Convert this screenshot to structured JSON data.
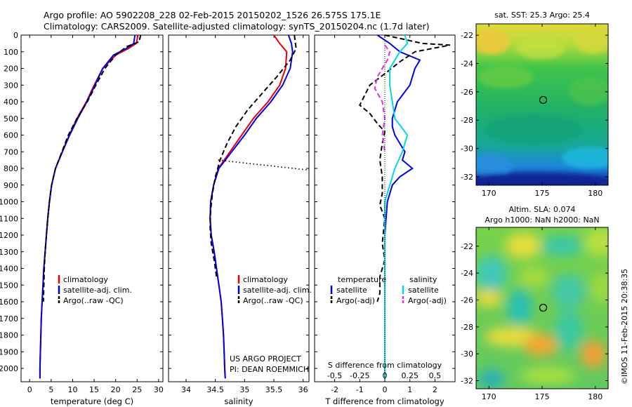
{
  "header": {
    "line1": "Argo profile: AO 5902208_228 02-Feb-2015 20150202_1526 26.575S 175.1E",
    "line2": "Climatology: CARS2009. Satellite-adjusted climatology: synTS_20150204.nc (1.7d later)"
  },
  "colors": {
    "climatology": "#e8000b",
    "satellite": "#0000e6",
    "argo": "#000000",
    "satellite_salinity": "#00d8e8",
    "argo_salinity": "#e030e0"
  },
  "footer_credit": {
    "line1": "US ARGO PROJECT",
    "line2": "PI: DEAN ROEMMICH"
  },
  "timestamp": "©IMOS 11-Feb-2015 20:38:35",
  "chart_data": [
    {
      "type": "line",
      "id": "temperature",
      "xlabel": "temperature (deg C)",
      "ylabel": "",
      "xlim": [
        -2,
        31
      ],
      "ylim": [
        2080,
        0
      ],
      "xticks": [
        0,
        5,
        10,
        15,
        20,
        25,
        30
      ],
      "yticks": [
        0,
        100,
        200,
        300,
        400,
        500,
        600,
        700,
        800,
        900,
        1000,
        1100,
        1200,
        1300,
        1400,
        1500,
        1600,
        1700,
        1800,
        1900,
        2000
      ],
      "legend": [
        "climatology",
        "satellite-adj. clim.",
        "Argo(..raw -QC)"
      ],
      "series": [
        {
          "name": "climatology",
          "style": "solid",
          "colorKey": "climatology",
          "x": [
            25.2,
            24.8,
            23.0,
            20.0,
            17.0,
            15.0,
            13.2,
            11.0,
            9.2,
            7.6,
            6.0,
            5.1,
            4.6,
            4.2,
            3.9,
            3.6,
            3.3,
            3.1,
            2.9,
            2.7,
            2.6,
            2.5,
            2.4,
            2.4
          ],
          "y": [
            0,
            50,
            80,
            120,
            200,
            300,
            400,
            500,
            600,
            700,
            800,
            900,
            1000,
            1100,
            1200,
            1300,
            1400,
            1500,
            1600,
            1700,
            1800,
            1900,
            2000,
            2060
          ]
        },
        {
          "name": "satellite-adj. clim.",
          "style": "solid",
          "colorKey": "satellite",
          "x": [
            24.5,
            24.2,
            22.5,
            19.5,
            17.0,
            15.2,
            13.3,
            11.2,
            9.3,
            7.6,
            6.0,
            5.1,
            4.6,
            4.2,
            3.9,
            3.6,
            3.3,
            3.1,
            2.9,
            2.7,
            2.6,
            2.5,
            2.4,
            2.4
          ],
          "y": [
            0,
            50,
            80,
            120,
            200,
            300,
            400,
            500,
            600,
            700,
            800,
            900,
            1000,
            1100,
            1200,
            1300,
            1400,
            1500,
            1600,
            1700,
            1800,
            1900,
            2000,
            2060
          ]
        },
        {
          "name": "Argo(..raw -QC)",
          "style": "dashed",
          "colorKey": "argo",
          "x": [
            25.8,
            25.5,
            22.5,
            20.0,
            17.5,
            15.4,
            13.4,
            11.0,
            9.0,
            7.5,
            6.0,
            5.1,
            4.6,
            4.2,
            3.9,
            3.6,
            3.4,
            3.2
          ],
          "y": [
            0,
            40,
            70,
            120,
            200,
            300,
            400,
            500,
            600,
            700,
            800,
            900,
            1000,
            1100,
            1200,
            1300,
            1400,
            1600
          ]
        }
      ]
    },
    {
      "type": "line",
      "id": "salinity",
      "xlabel": "salinity",
      "ylabel": "",
      "xlim": [
        33.7,
        36.1
      ],
      "ylim": [
        2080,
        0
      ],
      "xticks": [
        34,
        34.5,
        35,
        35.5,
        36
      ],
      "legend": [
        "climatology",
        "satellite-adj. clim.",
        "Argo(..raw -QC)"
      ],
      "series": [
        {
          "name": "climatology",
          "style": "solid",
          "colorKey": "climatology",
          "x": [
            35.5,
            35.6,
            35.72,
            35.7,
            35.6,
            35.4,
            35.15,
            34.95,
            34.75,
            34.55,
            34.47,
            34.42,
            34.41,
            34.43,
            34.48,
            34.52,
            34.56,
            34.6,
            34.62,
            34.64,
            34.65,
            34.66,
            34.67
          ],
          "y": [
            0,
            50,
            100,
            200,
            300,
            400,
            500,
            600,
            700,
            800,
            900,
            1000,
            1100,
            1200,
            1300,
            1400,
            1500,
            1600,
            1700,
            1800,
            1900,
            2000,
            2060
          ]
        },
        {
          "name": "satellite-adj. clim.",
          "style": "solid",
          "colorKey": "satellite",
          "x": [
            35.75,
            35.8,
            35.82,
            35.78,
            35.65,
            35.45,
            35.2,
            35.0,
            34.78,
            34.56,
            34.47,
            34.42,
            34.41,
            34.43,
            34.48,
            34.52,
            34.56,
            34.6,
            34.62,
            34.64,
            34.65,
            34.66,
            34.67
          ],
          "y": [
            0,
            50,
            100,
            200,
            300,
            400,
            500,
            600,
            700,
            800,
            900,
            1000,
            1100,
            1200,
            1300,
            1400,
            1500,
            1600,
            1700,
            1800,
            1900,
            2000,
            2060
          ]
        },
        {
          "name": "Argo(..raw -QC)",
          "style": "dashed",
          "colorKey": "argo",
          "x": [
            35.85,
            35.88,
            35.78,
            35.55,
            35.3,
            35.05,
            34.85,
            34.7,
            34.58,
            34.5,
            34.45,
            34.42,
            34.41,
            34.43,
            34.48,
            34.52
          ],
          "y": [
            0,
            80,
            150,
            250,
            350,
            450,
            550,
            650,
            750,
            850,
            950,
            1050,
            1150,
            1250,
            1350,
            1450
          ]
        },
        {
          "name": "",
          "style": "dotted",
          "colorKey": "argo",
          "x": [
            34.55,
            36.1
          ],
          "y": [
            750,
            810
          ]
        }
      ]
    },
    {
      "type": "line",
      "id": "difference",
      "xlabel": "T difference from climatology",
      "xlabel_top": "S difference from climatology",
      "xlim": [
        -2.8,
        2.8
      ],
      "ylim": [
        2080,
        0
      ],
      "xticks": [
        -2,
        -1,
        0,
        1,
        2
      ],
      "xticks_top": [
        "-0.5",
        "-0.25",
        "0",
        "0.25",
        "0.5"
      ],
      "xticks_top_pos": [
        -2,
        -1,
        0,
        1,
        2
      ],
      "legend_temperature_title": "temperature",
      "legend_salinity_title": "salinity",
      "legend_temperature": [
        "satellite",
        "Argo(-adj)"
      ],
      "legend_salinity": [
        "satellite",
        "Argo(-adj)"
      ],
      "series": [
        {
          "name": "temperature satellite",
          "style": "solid",
          "colorKey": "satellite",
          "x": [
            -0.3,
            0.2,
            0.6,
            1.4,
            1.2,
            1.0,
            0.5,
            0.3,
            0.3,
            0.4,
            0.6,
            0.8,
            0.7,
            1.1,
            0.6,
            0.3,
            0.1,
            0.0,
            0.0,
            0.0,
            0.0,
            0.0,
            0.0
          ],
          "y": [
            0,
            50,
            100,
            150,
            200,
            300,
            400,
            500,
            550,
            600,
            650,
            700,
            750,
            800,
            850,
            900,
            1000,
            1200,
            1400,
            1600,
            1800,
            2000,
            2060
          ]
        },
        {
          "name": "temperature Argo(-adj)",
          "style": "dashed",
          "colorKey": "argo",
          "x": [
            0.0,
            1.5,
            2.6,
            1.2,
            0.6,
            0.1,
            -0.6,
            -1.0,
            -0.6,
            -0.3,
            0.0,
            -0.1,
            -0.2,
            -0.1,
            -0.1,
            -0.2,
            0.0,
            -0.1,
            0.0,
            -0.2,
            -0.2,
            -0.3
          ],
          "y": [
            0,
            50,
            60,
            100,
            160,
            220,
            300,
            420,
            470,
            530,
            580,
            650,
            750,
            850,
            950,
            1020,
            1100,
            1250,
            1350,
            1450,
            1550,
            1600
          ]
        },
        {
          "name": "salinity satellite",
          "style": "solid",
          "colorKey": "satellite_salinity",
          "x": [
            0.8,
            0.9,
            0.6,
            0.4,
            0.2,
            0.2,
            0.3,
            0.4,
            0.9,
            0.7,
            0.4,
            0.2,
            0.0,
            0.0,
            0.0,
            0.0,
            0.0,
            0.0
          ],
          "y": [
            0,
            50,
            100,
            150,
            200,
            300,
            400,
            500,
            600,
            700,
            800,
            900,
            1000,
            1200,
            1400,
            1600,
            1800,
            2060
          ]
        },
        {
          "name": "salinity Argo(-adj)",
          "style": "dashed",
          "colorKey": "argo_salinity",
          "x": [
            0.0,
            0.2,
            0.1,
            -0.1,
            -0.3,
            -0.4,
            -0.1,
            0.0,
            -0.1,
            0.0
          ],
          "y": [
            60,
            100,
            150,
            200,
            250,
            320,
            400,
            500,
            600,
            700
          ]
        }
      ]
    },
    {
      "type": "heatmap",
      "id": "sst_map",
      "title": "sat. SST: 25.3 Argo: 25.4",
      "xlim": [
        168.8,
        181.2
      ],
      "ylim": [
        -32.6,
        -21.2
      ],
      "xticks": [
        170,
        175,
        180
      ],
      "yticks": [
        -22,
        -24,
        -26,
        -28,
        -30,
        -32
      ],
      "marker": {
        "lon": 175.1,
        "lat": -26.575
      }
    },
    {
      "type": "heatmap",
      "id": "sla_map",
      "title": "Altim. SLA: 0.074",
      "subtitle": "Argo h1000: NaN h2000: NaN",
      "xlim": [
        168.8,
        181.2
      ],
      "ylim": [
        -32.6,
        -20.6
      ],
      "xticks": [
        170,
        175,
        180
      ],
      "yticks": [
        -22,
        -24,
        -26,
        -28,
        -30,
        -32
      ],
      "marker": {
        "lon": 175.1,
        "lat": -26.575
      }
    }
  ]
}
